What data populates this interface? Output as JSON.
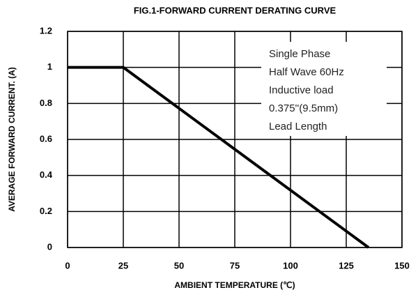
{
  "chart_data": {
    "type": "line",
    "title": "FIG.1-FORWARD CURRENT DERATING CURVE",
    "x_label": "AMBIENT TEMPERATURE (℃)",
    "y_label": "AVERAGE FORWARD CURRENT. (A)",
    "x": [
      0,
      25,
      135
    ],
    "series": [
      {
        "color": "#000000",
        "values": [
          1,
          1,
          0
        ]
      }
    ],
    "xlim": [
      0,
      150
    ],
    "xticks": [
      0,
      25,
      50,
      75,
      100,
      125,
      150
    ],
    "ylim": [
      0,
      1.2
    ],
    "yticks": [
      0,
      0.2,
      0.4,
      0.6,
      0.8,
      1,
      1.2
    ],
    "grid": true,
    "annotation": [
      "Single Phase",
      "Half Wave 60Hz",
      "Inductive load",
      "0.375''(9.5mm)",
      "Lead Length"
    ]
  }
}
